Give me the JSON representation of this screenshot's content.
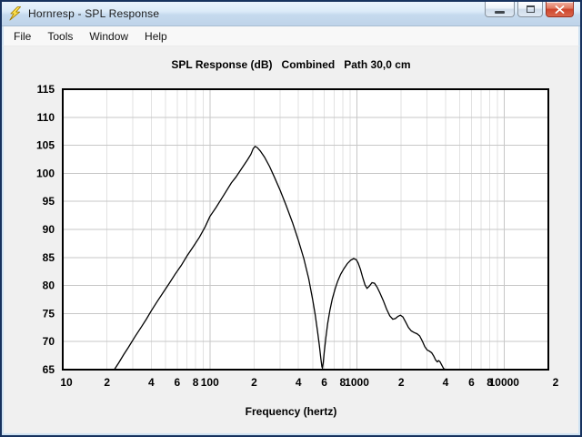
{
  "window": {
    "title": "Hornresp - SPL Response",
    "icons": {
      "app": "lightning-bolt",
      "minimize": "minimize-dash",
      "maximize": "maximize-square",
      "close": "close-x"
    }
  },
  "menu": {
    "items": [
      "File",
      "Tools",
      "Window",
      "Help"
    ]
  },
  "chart_data": {
    "type": "line",
    "title": "SPL Response (dB)   Combined   Path 30,0 cm",
    "xlabel": "Frequency (hertz)",
    "x_scale": "log",
    "xlim": [
      10,
      20000
    ],
    "ylim": [
      65,
      115
    ],
    "grid": true,
    "legend": "none",
    "y_ticks": [
      115,
      110,
      105,
      100,
      95,
      90,
      85,
      80,
      75,
      70,
      65
    ],
    "x_ticks": [
      {
        "f": 10,
        "label": "10"
      },
      {
        "f": 20,
        "label": "2"
      },
      {
        "f": 40,
        "label": "4"
      },
      {
        "f": 60,
        "label": "6"
      },
      {
        "f": 80,
        "label": "8"
      },
      {
        "f": 100,
        "label": "100"
      },
      {
        "f": 200,
        "label": "2"
      },
      {
        "f": 400,
        "label": "4"
      },
      {
        "f": 600,
        "label": "6"
      },
      {
        "f": 800,
        "label": "8"
      },
      {
        "f": 1000,
        "label": "1000"
      },
      {
        "f": 2000,
        "label": "2"
      },
      {
        "f": 4000,
        "label": "4"
      },
      {
        "f": 6000,
        "label": "6"
      },
      {
        "f": 8000,
        "label": "8"
      },
      {
        "f": 10000,
        "label": "10000"
      },
      {
        "f": 20000,
        "label": "2"
      }
    ],
    "colors": {
      "plot_bg": "#ffffff",
      "grid_major": "#c7c7c7",
      "grid_minor": "#e2e2e2",
      "axis": "#000000",
      "curve": "#000000",
      "window_bg": "#f0f0f0"
    },
    "series": [
      {
        "name": "Combined",
        "points": [
          [
            22.4,
            65
          ],
          [
            24,
            66.2
          ],
          [
            26,
            67.7
          ],
          [
            28,
            69
          ],
          [
            31,
            70.9
          ],
          [
            34,
            72.5
          ],
          [
            37,
            74
          ],
          [
            40,
            75.5
          ],
          [
            44,
            77.2
          ],
          [
            48,
            78.7
          ],
          [
            53,
            80.4
          ],
          [
            58,
            82
          ],
          [
            64,
            83.6
          ],
          [
            70,
            85.3
          ],
          [
            77,
            86.9
          ],
          [
            85,
            88.6
          ],
          [
            93,
            90.5
          ],
          [
            100,
            92.3
          ],
          [
            110,
            93.9
          ],
          [
            125,
            96.2
          ],
          [
            140,
            98.3
          ],
          [
            150,
            99.3
          ],
          [
            165,
            100.9
          ],
          [
            180,
            102.4
          ],
          [
            190,
            103.4
          ],
          [
            197,
            104.4
          ],
          [
            203,
            104.8
          ],
          [
            210,
            104.6
          ],
          [
            220,
            104
          ],
          [
            235,
            102.9
          ],
          [
            255,
            101.2
          ],
          [
            275,
            99.3
          ],
          [
            300,
            97
          ],
          [
            330,
            94.3
          ],
          [
            365,
            91.2
          ],
          [
            400,
            88
          ],
          [
            435,
            84.8
          ],
          [
            470,
            81.2
          ],
          [
            500,
            77.5
          ],
          [
            520,
            74.8
          ],
          [
            540,
            71.8
          ],
          [
            555,
            69.3
          ],
          [
            568,
            67
          ],
          [
            578,
            65.5
          ],
          [
            583,
            65.3
          ],
          [
            590,
            66.3
          ],
          [
            600,
            68.2
          ],
          [
            615,
            70.8
          ],
          [
            632,
            73.2
          ],
          [
            655,
            75.6
          ],
          [
            680,
            77.6
          ],
          [
            710,
            79.4
          ],
          [
            740,
            80.8
          ],
          [
            775,
            82
          ],
          [
            815,
            83
          ],
          [
            860,
            83.9
          ],
          [
            905,
            84.5
          ],
          [
            950,
            84.8
          ],
          [
            990,
            84.6
          ],
          [
            1020,
            84
          ],
          [
            1055,
            82.9
          ],
          [
            1095,
            81.4
          ],
          [
            1135,
            80.1
          ],
          [
            1170,
            79.5
          ],
          [
            1215,
            79.9
          ],
          [
            1265,
            80.5
          ],
          [
            1315,
            80.4
          ],
          [
            1370,
            79.7
          ],
          [
            1430,
            78.7
          ],
          [
            1510,
            77.3
          ],
          [
            1590,
            75.8
          ],
          [
            1670,
            74.6
          ],
          [
            1750,
            74
          ],
          [
            1825,
            74.1
          ],
          [
            1900,
            74.5
          ],
          [
            1975,
            74.7
          ],
          [
            2050,
            74.4
          ],
          [
            2140,
            73.5
          ],
          [
            2240,
            72.5
          ],
          [
            2340,
            71.9
          ],
          [
            2450,
            71.6
          ],
          [
            2560,
            71.4
          ],
          [
            2670,
            71
          ],
          [
            2780,
            70.1
          ],
          [
            2890,
            69.1
          ],
          [
            3000,
            68.5
          ],
          [
            3110,
            68.3
          ],
          [
            3220,
            68
          ],
          [
            3330,
            67.4
          ],
          [
            3430,
            66.7
          ],
          [
            3520,
            66.4
          ],
          [
            3590,
            66.6
          ],
          [
            3670,
            66.4
          ],
          [
            3770,
            65.8
          ],
          [
            3880,
            65.2
          ],
          [
            4000,
            65
          ]
        ]
      }
    ]
  }
}
